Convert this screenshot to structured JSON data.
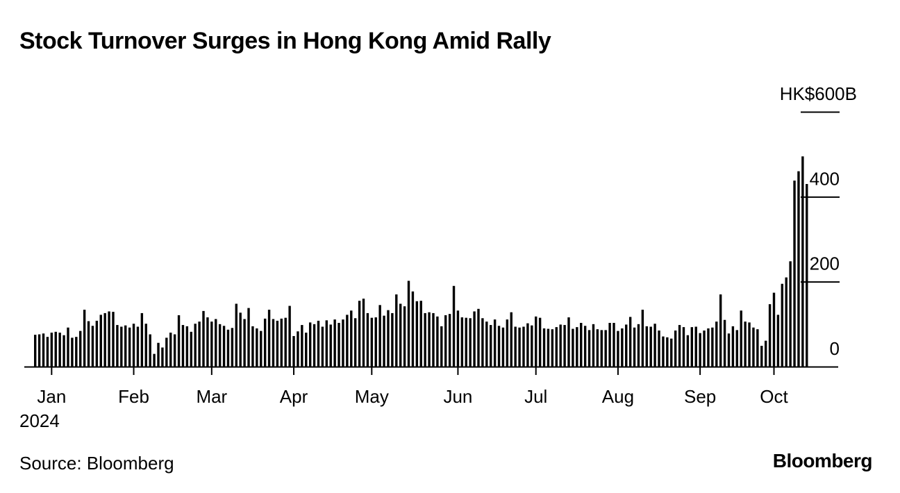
{
  "header": {
    "title": "Stock Turnover Surges in Hong Kong Amid Rally"
  },
  "footer": {
    "source": "Source: Bloomberg",
    "brand": "Bloomberg"
  },
  "colors": {
    "bar": "#000000",
    "background": "#ffffff"
  },
  "chart_data": {
    "type": "bar",
    "title": "Stock Turnover Surges in Hong Kong Amid Rally",
    "ylabel": "HK$ billions",
    "ylim": [
      0,
      600
    ],
    "y_ticks": [
      {
        "value": 600,
        "label": "HK$600B"
      },
      {
        "value": 400,
        "label": "400"
      },
      {
        "value": 200,
        "label": "200"
      },
      {
        "value": 0,
        "label": "0"
      }
    ],
    "x_ticks": [
      {
        "index": 4,
        "label": "Jan"
      },
      {
        "index": 24,
        "label": "Feb"
      },
      {
        "index": 43,
        "label": "Mar"
      },
      {
        "index": 63,
        "label": "Apr"
      },
      {
        "index": 82,
        "label": "May"
      },
      {
        "index": 103,
        "label": "Jun"
      },
      {
        "index": 122,
        "label": "Jul"
      },
      {
        "index": 142,
        "label": "Aug"
      },
      {
        "index": 162,
        "label": "Sep"
      },
      {
        "index": 180,
        "label": "Oct"
      }
    ],
    "year_label": "2024",
    "values": [
      75,
      76,
      78,
      70,
      80,
      82,
      80,
      74,
      92,
      68,
      70,
      84,
      134,
      107,
      96,
      108,
      122,
      126,
      130,
      129,
      98,
      94,
      97,
      92,
      101,
      94,
      126,
      101,
      76,
      30,
      56,
      45,
      68,
      80,
      76,
      121,
      98,
      95,
      82,
      101,
      106,
      131,
      116,
      106,
      112,
      100,
      96,
      87,
      91,
      148,
      127,
      112,
      138,
      95,
      90,
      84,
      113,
      134,
      112,
      108,
      113,
      115,
      143,
      72,
      83,
      98,
      80,
      104,
      100,
      108,
      94,
      109,
      99,
      111,
      103,
      111,
      122,
      132,
      114,
      155,
      160,
      126,
      115,
      116,
      145,
      120,
      133,
      126,
      170,
      148,
      142,
      202,
      177,
      154,
      155,
      126,
      128,
      126,
      118,
      95,
      121,
      124,
      190,
      132,
      116,
      115,
      114,
      130,
      136,
      114,
      106,
      98,
      111,
      96,
      92,
      111,
      128,
      94,
      92,
      94,
      102,
      97,
      118,
      115,
      90,
      89,
      88,
      93,
      99,
      98,
      116,
      89,
      93,
      103,
      96,
      86,
      100,
      88,
      86,
      86,
      103,
      103,
      84,
      90,
      99,
      117,
      92,
      100,
      134,
      95,
      94,
      101,
      85,
      71,
      69,
      66,
      85,
      98,
      93,
      74,
      93,
      94,
      79,
      85,
      90,
      92,
      106,
      170,
      110,
      78,
      95,
      86,
      132,
      106,
      104,
      92,
      88,
      49,
      61,
      147,
      174,
      122,
      195,
      210,
      248,
      438,
      460,
      495,
      430
    ]
  }
}
